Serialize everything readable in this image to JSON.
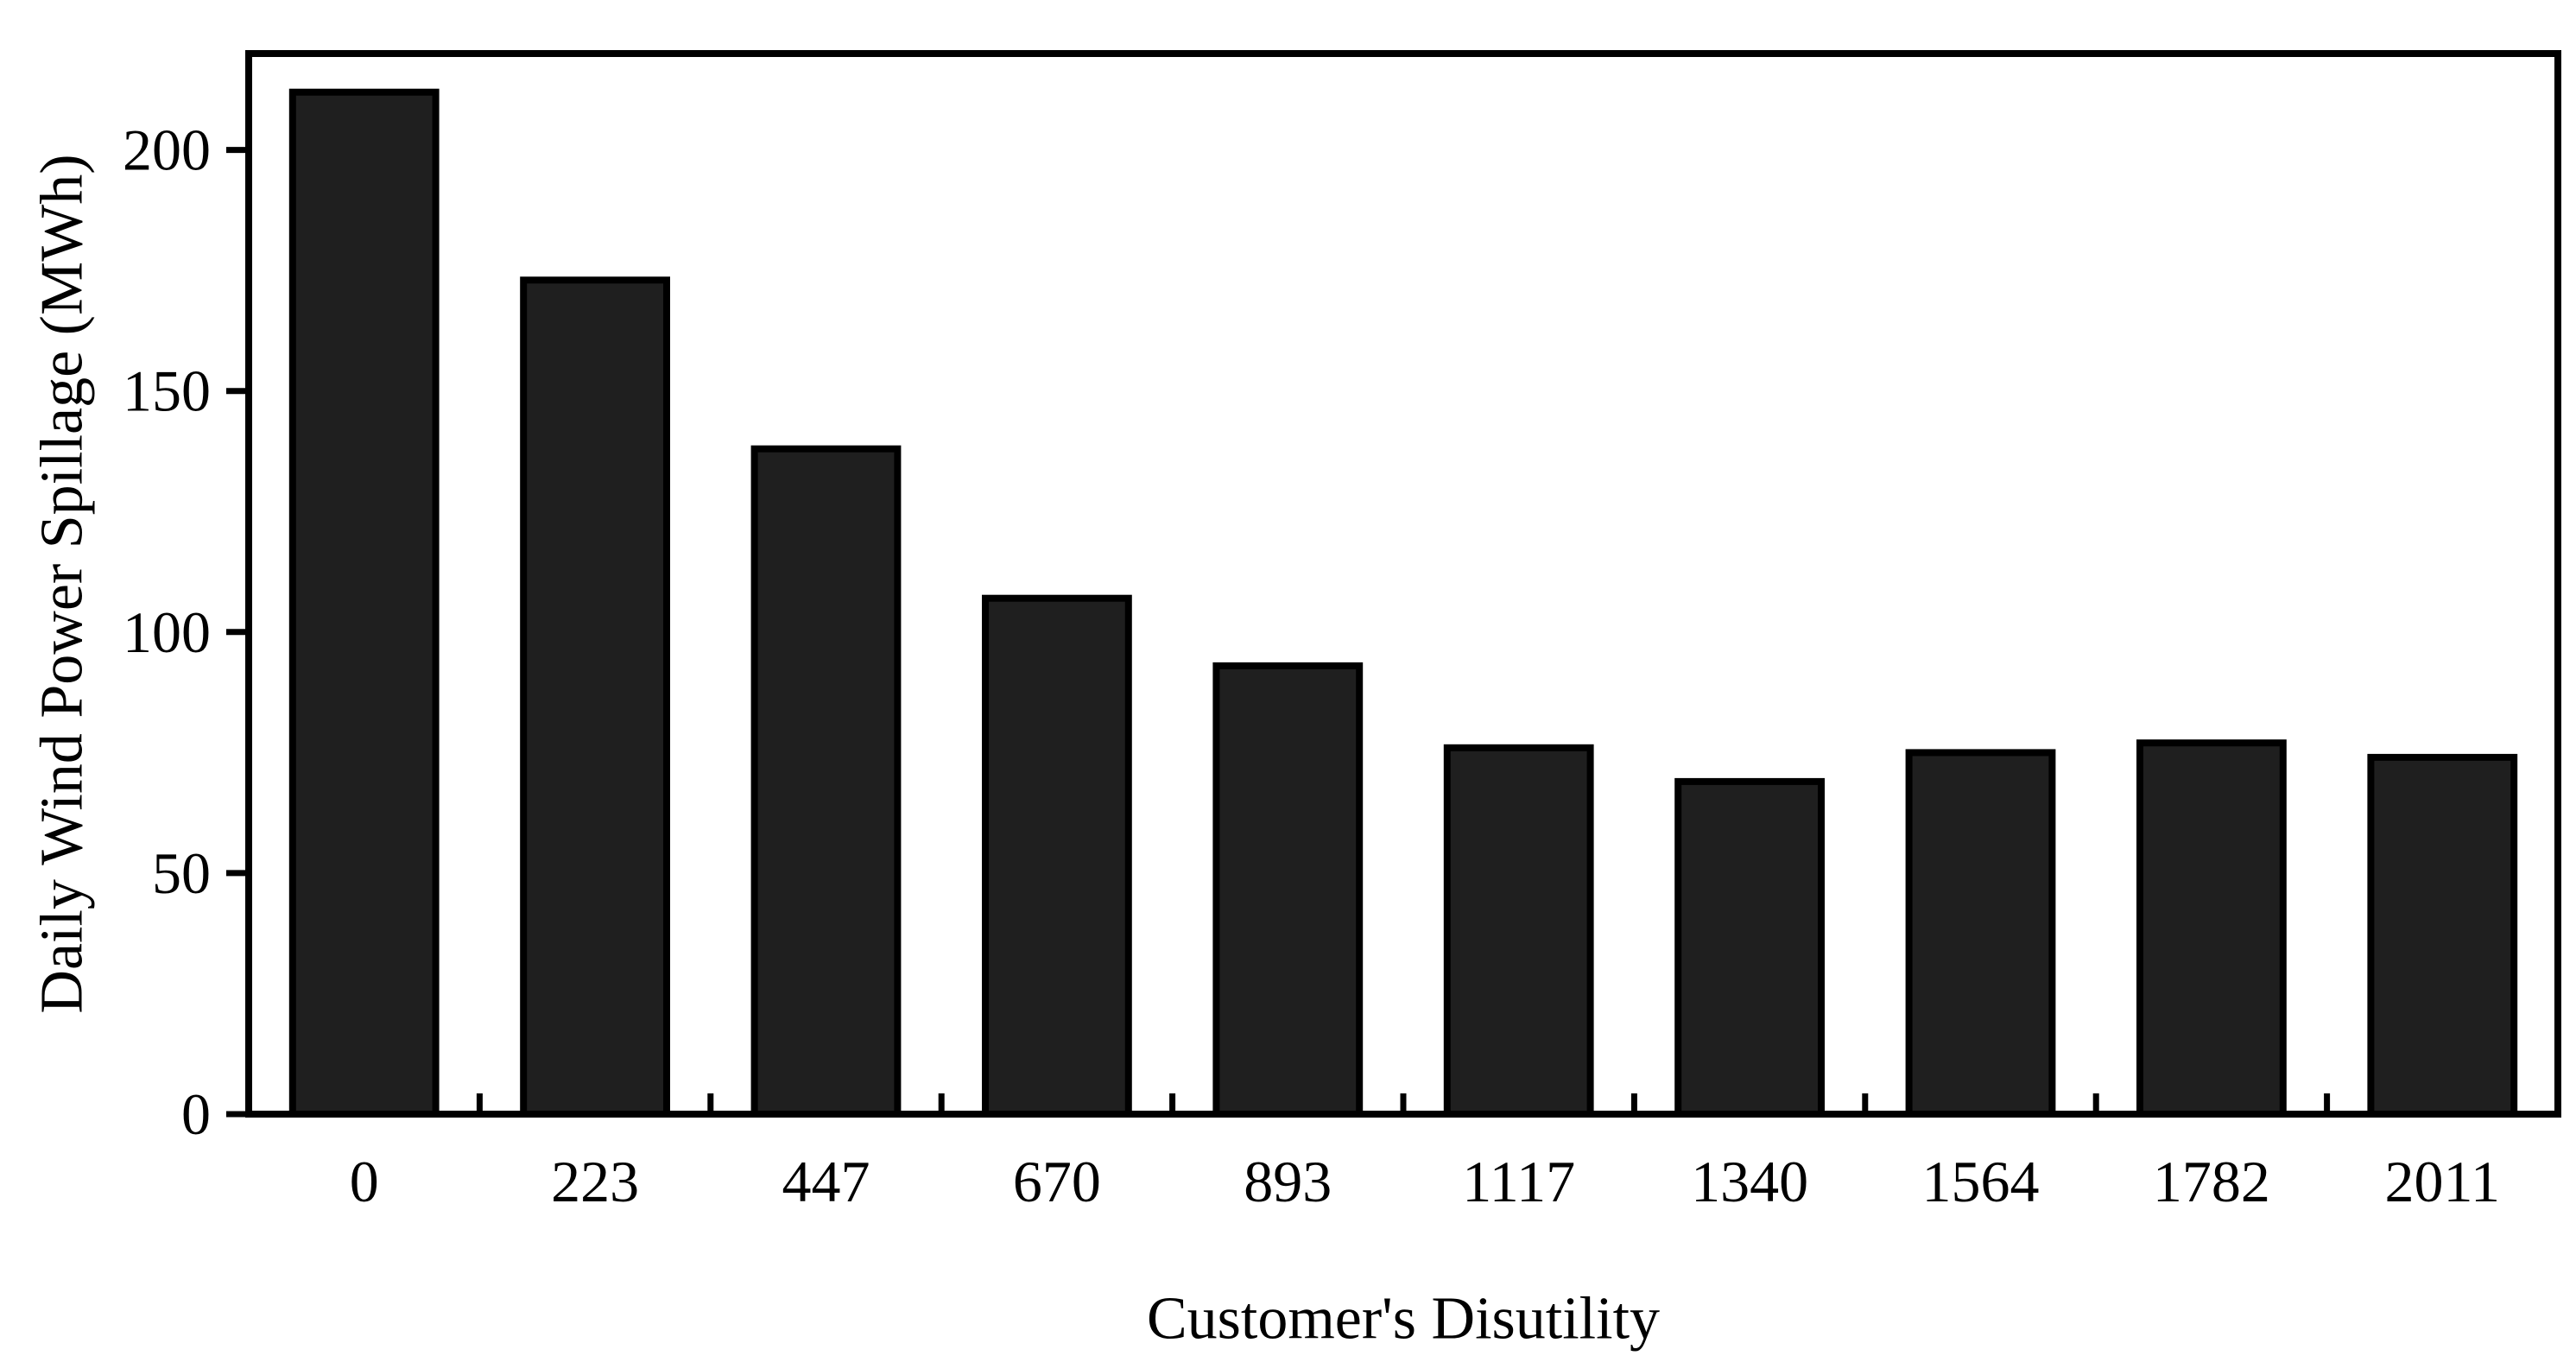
{
  "figure": {
    "background": "#ffffff"
  },
  "chart_data": {
    "type": "bar",
    "title": "",
    "xlabel": "Customer's Disutility",
    "ylabel": "Daily Wind Power Spillage (MWh)",
    "categories": [
      "0",
      "223",
      "447",
      "670",
      "893",
      "1117",
      "1340",
      "1564",
      "1782",
      "2011"
    ],
    "values": [
      212,
      173,
      138,
      107,
      93,
      76,
      69,
      75,
      77,
      74
    ],
    "ylim": [
      0,
      220
    ],
    "yticks": [
      0,
      50,
      100,
      150,
      200
    ],
    "grid": false,
    "legend": "none",
    "bar_width_fraction": 0.62,
    "bar_fill": "#1f1f1f",
    "bar_stroke": "#000000",
    "axis_color": "#000000",
    "text_color": "#000000"
  }
}
